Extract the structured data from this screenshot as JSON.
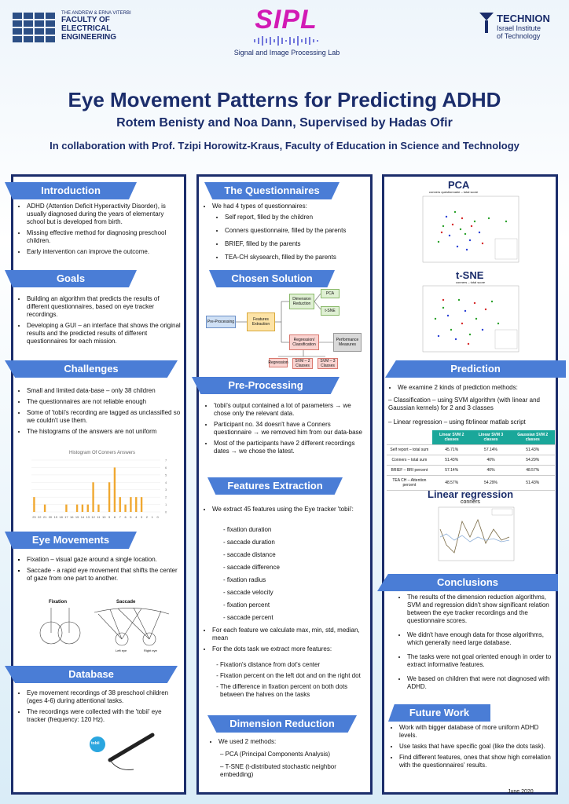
{
  "header": {
    "faculty_line1": "THE ANDREW & ERNA VITERBI",
    "faculty_line2": "FACULTY OF",
    "faculty_line3": "ELECTRICAL",
    "faculty_line4": "ENGINEERING",
    "lab_logo": "SIPL",
    "lab_name": "Signal and Image Processing Lab",
    "technion_name": "TECHNION",
    "technion_sub1": "Israel Institute",
    "technion_sub2": "of Technology"
  },
  "title": "Eye Movement Patterns for Predicting ADHD",
  "authors": "Rotem Benisty and Noa Dann, Supervised by Hadas Ofir",
  "collaboration": "In collaboration with Prof. Tzipi Horowitz-Kraus, Faculty of Education in Science and Technology",
  "intro": {
    "heading": "Introduction",
    "items": [
      "ADHD (Attention Deficit Hyperactivity Disorder), is usually diagnosed during the years of elementary school but is developed from birth.",
      "Missing effective method for diagnosing preschool children.",
      "Early intervention can improve the outcome."
    ]
  },
  "goals": {
    "heading": "Goals",
    "items": [
      "Building an algorithm that predicts the results of different questionnaires, based on eye tracker recordings.",
      "Developing a GUI – an interface that shows the original results and the predicted results of different questionnaires for each mission."
    ]
  },
  "challenges": {
    "heading": "Challenges",
    "items": [
      "Small and limited data-base – only 38 children",
      "The questionnaires are not reliable enough",
      "Some of 'tobii's recording are tagged as unclassified so we couldn't use them.",
      "The histograms of the answers are not uniform"
    ],
    "histogram_title": "Histogram Of Conners Answers"
  },
  "eye_movements": {
    "heading": "Eye Movements",
    "items": [
      "Fixation – visual gaze around a single location.",
      "Saccade - a rapid eye movement that shifts the center of gaze from one part to another."
    ],
    "fixation_label": "Fixation",
    "saccade_label": "Saccade",
    "left_eye": "Left eye",
    "right_eye": "Right eye"
  },
  "database": {
    "heading": "Database",
    "items": [
      "Eye movement recordings of 38 preschool children (ages 4-6) during attentional tasks.",
      "The recordings were collected with the 'tobii' eye tracker (frequency: 120 Hz)."
    ],
    "device_label": "tobii"
  },
  "questionnaires": {
    "heading": "The Questionnaires",
    "intro": "We had 4 types of questionnaires:",
    "items": [
      "Self report, filled by the children",
      "Conners questionnaire, filled by the parents",
      "BRIEF, filled by the parents",
      "TEA-CH skysearch, filled by the parents"
    ]
  },
  "chosen_solution": {
    "heading": "Chosen Solution",
    "boxes": {
      "preprocessing": "Pre-Processing",
      "features": "Features Extraction",
      "dim_red": "Dimension Reduction",
      "pca": "PCA",
      "tsne": "t-SNE",
      "reg_class": "Regression/ Classification",
      "perf": "Performance Measures",
      "regression": "Regression",
      "svm2": "SVM – 2 Classes",
      "svm3": "SVM – 3 Classes"
    }
  },
  "preprocessing": {
    "heading": "Pre-Processing",
    "items": [
      "'tobii's output contained a lot of parameters → we chose only the relevant data.",
      "Participant no. 34 doesn't have a Conners questionnaire → we removed him from our data-base",
      "Most of the participants have 2 different recordings dates → we chose the latest."
    ]
  },
  "features": {
    "heading": "Features Extraction",
    "intro": "We extract 45 features using the Eye tracker 'tobii':",
    "list": [
      "- fixation duration",
      "- saccade duration",
      "- saccade distance",
      "- saccade difference",
      "- fixation radius",
      "- saccade velocity",
      "- fixation percent",
      "- saccade percent"
    ],
    "more": [
      "For each feature we calculate max, min, std, median, mean",
      "For the dots task we extract more features:"
    ],
    "dots": [
      "Fixation's distance from dot's center",
      "Fixation percent on the left dot and on the right dot",
      "The difference in fixation percent on both dots between the halves on the tasks"
    ]
  },
  "dimension": {
    "heading": "Dimension Reduction",
    "intro": "We used 2 methods:",
    "items": [
      "– PCA (Principal Components Analysis)",
      "– T-SNE (t-distributed stochastic neighbor embedding)"
    ]
  },
  "pca_plot": {
    "title": "PCA",
    "subtitle": "conners questionnaire – total score"
  },
  "tsne_plot": {
    "title": "t-SNE",
    "subtitle": "conners – total score"
  },
  "prediction": {
    "heading": "Prediction",
    "intro": "We examine 2 kinds of prediction methods:",
    "classification": "– Classification – using SVM algorithm (with linear and Gaussian kernels) for 2 and 3 classes",
    "regression": "– Linear regression – using fitrlinear matlab script",
    "table": {
      "headers": [
        "",
        "Linear SVM 2 classes",
        "Linear SVM 3 classes",
        "Gaussian SVM 2 classes"
      ],
      "rows": [
        [
          "Self report – total sum",
          "45.71%",
          "57.14%",
          "51.43%"
        ],
        [
          "Conners – total sum",
          "51.43%",
          "40%",
          "54.29%"
        ],
        [
          "BRIEF – BRI percent",
          "57.14%",
          "40%",
          "48.57%"
        ],
        [
          "TEA CH – Attention percent",
          "48.57%",
          "54.29%",
          "51.43%"
        ]
      ]
    }
  },
  "linreg": {
    "heading": "Linear regression",
    "chart_title": "conners"
  },
  "conclusions": {
    "heading": "Conclusions",
    "items": [
      "The results of the dimension reduction algorithms, SVM and regression didn't show significant relation between the eye tracker recordings and the questionnaire scores.",
      "We didn't have enough data for those algorithms, which generally need large database.",
      "The tasks were not goal oriented enough in order to extract informative features.",
      "We based on children that were not diagnosed with ADHD."
    ]
  },
  "future": {
    "heading": "Future Work",
    "items": [
      "Work with bigger database of more uniform ADHD levels.",
      "Use tasks that have specific goal (like the dots task).",
      "Find different features, ones that show high correlation with the questionnaires' results."
    ]
  },
  "date": "June 2020",
  "colors": {
    "navy": "#1b2d6b",
    "tag": "#4a7dd6",
    "teal": "#1aa79a",
    "bars": "#f0a830"
  },
  "chart_data": [
    {
      "type": "bar",
      "title": "Histogram Of Conners Answers",
      "categories": [
        "23",
        "22",
        "21",
        "20",
        "19",
        "18",
        "17",
        "16",
        "15",
        "14",
        "13",
        "12",
        "11",
        "10",
        "9",
        "8",
        "7",
        "6",
        "5",
        "4",
        "3",
        "2",
        "1",
        "0"
      ],
      "values": [
        2,
        0,
        1,
        0,
        0,
        0,
        1,
        0,
        1,
        1,
        1,
        4,
        1,
        0,
        4,
        6,
        2,
        1,
        2,
        2,
        2,
        0,
        0,
        0
      ],
      "ylim": [
        0,
        7
      ]
    }
  ]
}
